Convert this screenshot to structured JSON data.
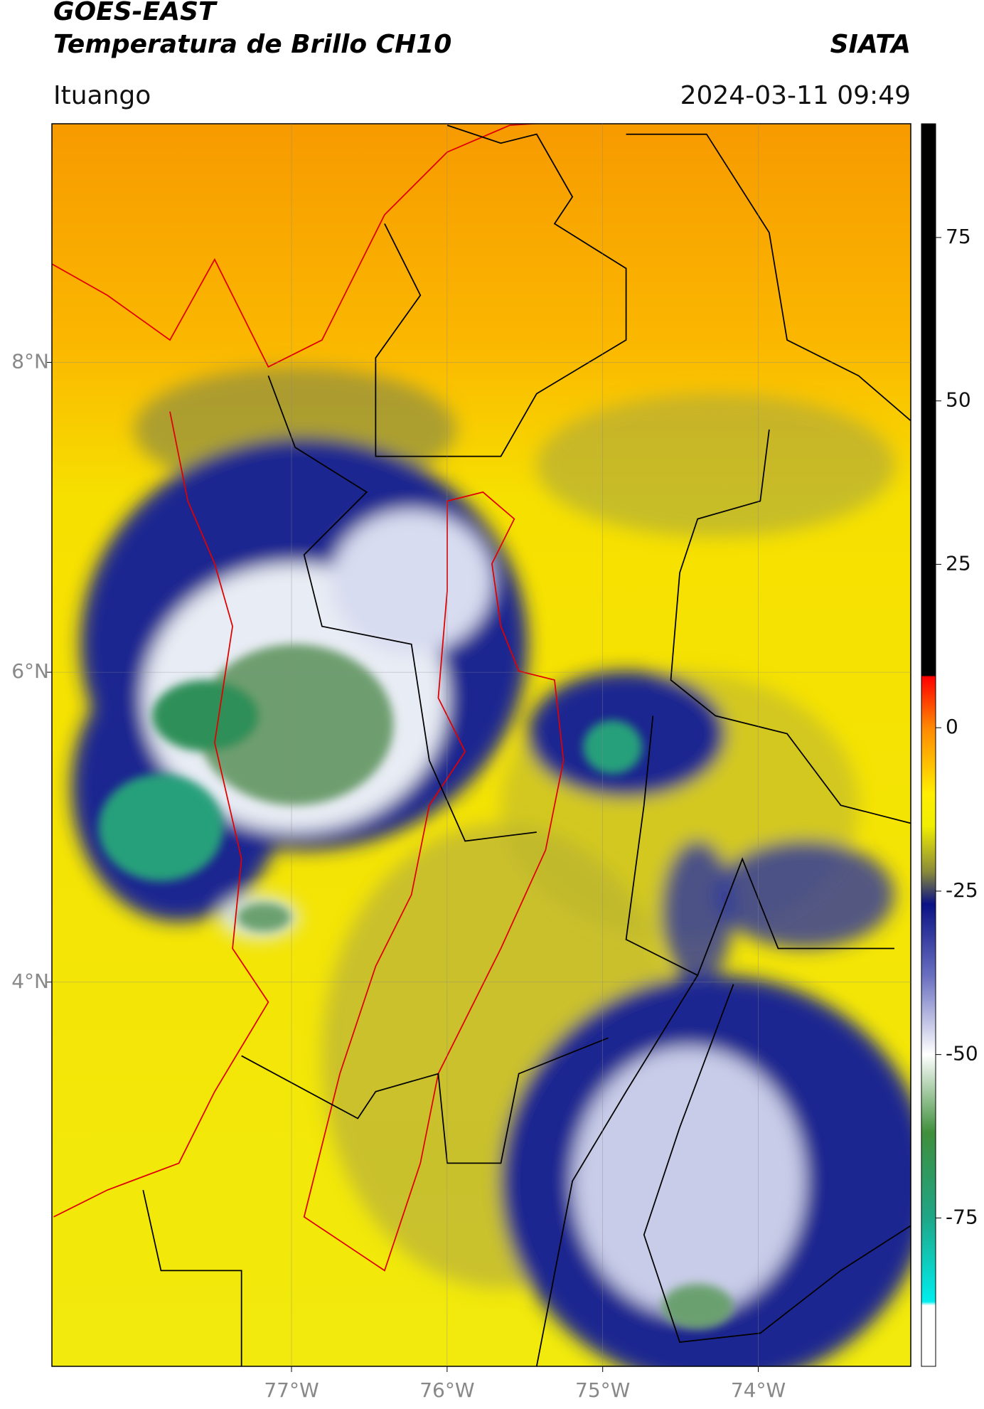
{
  "header": {
    "title": "GOES-EAST",
    "subtitle": "Temperatura de Brillo CH10",
    "source": "SIATA",
    "location": "Ituango",
    "datetime": "2024-03-11 09:49"
  },
  "chart_data": {
    "type": "map",
    "xlim": [
      -78.54,
      -73.02
    ],
    "ylim": [
      1.52,
      9.54
    ],
    "xticks": [
      {
        "value": -77,
        "label": "77°W"
      },
      {
        "value": -76,
        "label": "76°W"
      },
      {
        "value": -75,
        "label": "75°W"
      },
      {
        "value": -74,
        "label": "74°W"
      }
    ],
    "yticks": [
      {
        "value": 4,
        "label": "4°N"
      },
      {
        "value": 6,
        "label": "6°N"
      },
      {
        "value": 8,
        "label": "8°N"
      }
    ],
    "grid": true,
    "colorbar": {
      "lim": [
        -97.7,
        92.4
      ],
      "ticks": [
        75,
        50,
        25,
        0,
        -25,
        -50,
        -75
      ]
    }
  }
}
